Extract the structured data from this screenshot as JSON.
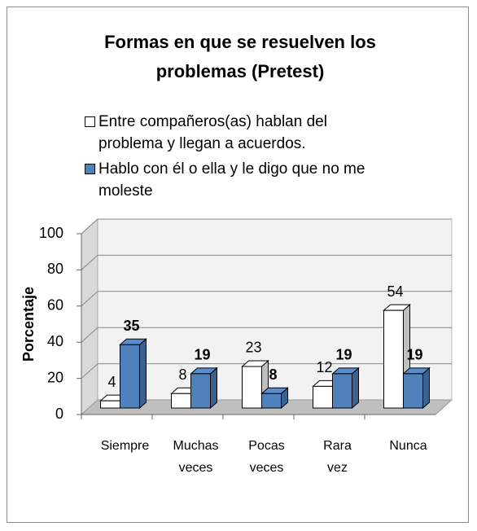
{
  "chart_data": {
    "type": "bar3d",
    "title": "Formas en que  se resuelven los problemas  (Pretest)",
    "y_label": "Porcentaje",
    "categories": [
      "Siempre",
      "Muchas veces",
      "Pocas veces",
      "Rara vez",
      "Nunca"
    ],
    "series": [
      {
        "name": "Entre compañeros(as) hablan del problema y llegan a acuerdos.",
        "color": "#ffffff",
        "values": [
          4,
          8,
          23,
          12,
          54
        ]
      },
      {
        "name": "Hablo con él o ella y le digo que no me moleste",
        "color": "#4f81bd",
        "values": [
          35,
          19,
          8,
          19,
          19
        ]
      }
    ],
    "ylim": [
      0,
      100
    ],
    "yticks": [
      0,
      20,
      40,
      60,
      80,
      100
    ],
    "grid": true,
    "legend": "top"
  }
}
